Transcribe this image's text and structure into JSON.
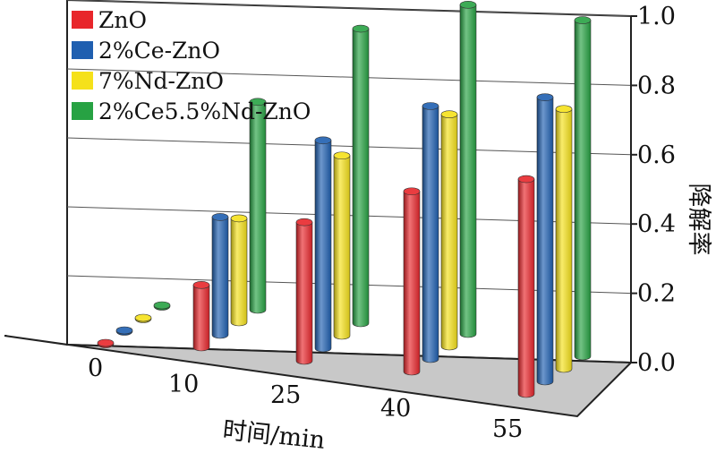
{
  "chart_data": {
    "type": "bar",
    "subtype": "3d-cylinder",
    "title": "",
    "categories": [
      "0",
      "10",
      "25",
      "40",
      "55"
    ],
    "xlabel": "时间/min",
    "ylabel": "降解率",
    "ylim": [
      0,
      1.0
    ],
    "yticks": [
      "0.0",
      "0.2",
      "0.4",
      "0.6",
      "0.8",
      "1.0"
    ],
    "grid": true,
    "legend_position": "top-left",
    "series": [
      {
        "name": "ZnO",
        "color": "#e8262b",
        "values": [
          0.0,
          0.18,
          0.4,
          0.52,
          0.62
        ]
      },
      {
        "name": "2%Ce-ZnO",
        "color": "#1f5fb0",
        "values": [
          0.0,
          0.34,
          0.6,
          0.73,
          0.82
        ]
      },
      {
        "name": "7%Nd-ZnO",
        "color": "#f5e11a",
        "values": [
          0.0,
          0.3,
          0.52,
          0.67,
          0.75
        ]
      },
      {
        "name": "2%Ce5.5%Nd-ZnO",
        "color": "#27a243",
        "values": [
          0.0,
          0.6,
          0.85,
          0.95,
          0.97
        ]
      }
    ]
  }
}
